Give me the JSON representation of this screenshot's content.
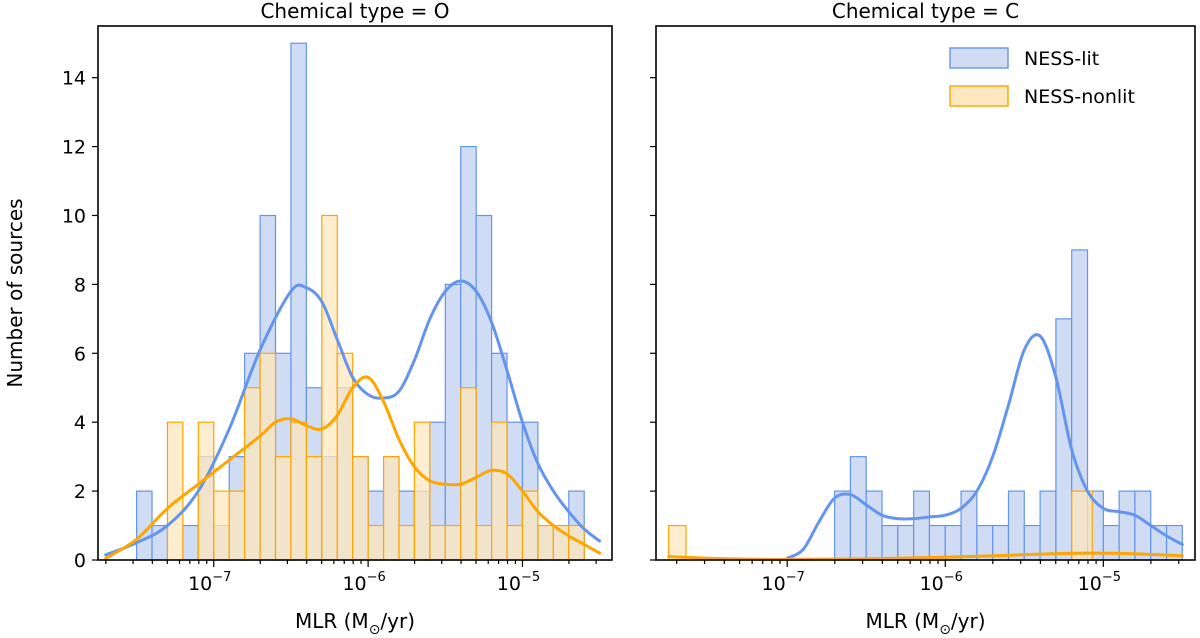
{
  "chart_data": [
    {
      "type": "histogram",
      "panel": "left",
      "title": "Chemical type = O",
      "xlabel": "MLR (M⊙/yr)",
      "xlabel_text": "MLR (M",
      "xlabel_sub": "⊙",
      "xlabel_end": "/yr)",
      "ylabel": "Number of sources",
      "xscale": "log",
      "xlim_log10": [
        -7.75,
        -4.42
      ],
      "ylim": [
        0,
        15.5
      ],
      "yticks": [
        "0",
        "2",
        "4",
        "6",
        "8",
        "10",
        "12",
        "14"
      ],
      "xticks": [
        {
          "base": "10",
          "exp": "−7",
          "log10": -7
        },
        {
          "base": "10",
          "exp": "−6",
          "log10": -6
        },
        {
          "base": "10",
          "exp": "−5",
          "log10": -5
        }
      ],
      "bin_edges_log10": [
        -7.5,
        -7.4,
        -7.3,
        -7.2,
        -7.1,
        -7.0,
        -6.9,
        -6.8,
        -6.7,
        -6.6,
        -6.5,
        -6.4,
        -6.3,
        -6.2,
        -6.1,
        -6.0,
        -5.9,
        -5.8,
        -5.7,
        -5.6,
        -5.5,
        -5.4,
        -5.3,
        -5.2,
        -5.1,
        -5.0,
        -4.9,
        -4.8,
        -4.7,
        -4.6,
        -4.5
      ],
      "series": [
        {
          "name": "NESS-lit",
          "color": "#6495ed",
          "fill": "#cfdcf4",
          "counts": [
            2,
            1,
            0,
            1,
            3,
            1,
            3,
            6,
            10,
            6,
            15,
            5,
            3,
            5,
            3,
            2,
            3,
            2,
            2,
            4,
            8,
            12,
            10,
            6,
            4,
            4,
            1,
            1,
            2,
            0
          ]
        },
        {
          "name": "NESS-nonlit",
          "color": "#ffa500",
          "fill": "#fde7be",
          "counts": [
            0,
            0,
            4,
            0,
            4,
            2,
            2,
            5,
            6,
            3,
            4,
            3,
            10,
            6,
            3,
            1,
            3,
            1,
            4,
            1,
            1,
            5,
            1,
            4,
            1,
            2,
            1,
            1,
            1,
            0
          ]
        }
      ],
      "kde": [
        {
          "name": "NESS-lit",
          "color": "#6495ed",
          "x_log10": [
            -7.7,
            -7.5,
            -7.3,
            -7.1,
            -6.9,
            -6.7,
            -6.5,
            -6.4,
            -6.3,
            -6.2,
            -6.1,
            -6.0,
            -5.9,
            -5.8,
            -5.7,
            -5.6,
            -5.5,
            -5.4,
            -5.3,
            -5.2,
            -5.1,
            -5.0,
            -4.9,
            -4.8,
            -4.7,
            -4.6,
            -4.5
          ],
          "y": [
            0.15,
            0.5,
            1.0,
            2.0,
            3.8,
            6.1,
            7.8,
            7.9,
            7.5,
            6.4,
            5.3,
            4.8,
            4.7,
            4.9,
            5.8,
            7.0,
            7.8,
            8.1,
            7.8,
            6.9,
            5.5,
            4.0,
            2.8,
            2.0,
            1.4,
            0.9,
            0.55
          ]
        },
        {
          "name": "NESS-nonlit",
          "color": "#ffa500",
          "x_log10": [
            -7.7,
            -7.5,
            -7.3,
            -7.1,
            -6.9,
            -6.7,
            -6.6,
            -6.5,
            -6.4,
            -6.3,
            -6.2,
            -6.1,
            -6.0,
            -5.9,
            -5.8,
            -5.7,
            -5.6,
            -5.5,
            -5.4,
            -5.3,
            -5.2,
            -5.1,
            -5.0,
            -4.9,
            -4.8,
            -4.7,
            -4.6,
            -4.5
          ],
          "y": [
            0.05,
            0.6,
            1.5,
            2.2,
            2.9,
            3.6,
            4.0,
            4.1,
            3.9,
            3.8,
            4.2,
            5.0,
            5.3,
            4.6,
            3.5,
            2.7,
            2.3,
            2.2,
            2.2,
            2.4,
            2.6,
            2.5,
            2.0,
            1.4,
            1.0,
            0.7,
            0.45,
            0.2
          ]
        }
      ]
    },
    {
      "type": "histogram",
      "panel": "right",
      "title": "Chemical type = C",
      "xlabel": "MLR (M⊙/yr)",
      "xlabel_text": "MLR (M",
      "xlabel_sub": "⊙",
      "xlabel_end": "/yr)",
      "ylabel": "",
      "xscale": "log",
      "xlim_log10": [
        -7.83,
        -4.42
      ],
      "ylim": [
        0,
        15.5
      ],
      "yticks": [
        "0",
        "2",
        "4",
        "6",
        "8",
        "10",
        "12",
        "14"
      ],
      "xticks": [
        {
          "base": "10",
          "exp": "−7",
          "log10": -7
        },
        {
          "base": "10",
          "exp": "−6",
          "log10": -6
        },
        {
          "base": "10",
          "exp": "−5",
          "log10": -5
        }
      ],
      "bin_edges_log10": [
        -6.7,
        -6.6,
        -6.5,
        -6.4,
        -6.3,
        -6.2,
        -6.1,
        -6.0,
        -5.9,
        -5.8,
        -5.7,
        -5.6,
        -5.5,
        -5.4,
        -5.3,
        -5.2,
        -5.1,
        -5.0,
        -4.9,
        -4.8,
        -4.7,
        -4.6,
        -4.5
      ],
      "series": [
        {
          "name": "NESS-lit",
          "color": "#6495ed",
          "fill": "#cfdcf4",
          "counts": [
            2,
            3,
            2,
            1,
            1,
            2,
            1,
            1,
            2,
            1,
            1,
            2,
            1,
            2,
            7,
            9,
            2,
            1,
            2,
            2,
            1,
            1
          ]
        },
        {
          "name": "NESS-nonlit",
          "color": "#ffa500",
          "fill": "#fde7be",
          "bars": [
            {
              "from": -7.75,
              "to": -7.64,
              "count": 1
            },
            {
              "from": -5.2,
              "to": -5.07,
              "count": 2
            }
          ]
        }
      ],
      "kde": [
        {
          "name": "NESS-lit",
          "color": "#6495ed",
          "x_log10": [
            -7.0,
            -6.9,
            -6.8,
            -6.7,
            -6.6,
            -6.5,
            -6.4,
            -6.3,
            -6.2,
            -6.1,
            -6.0,
            -5.9,
            -5.8,
            -5.7,
            -5.6,
            -5.5,
            -5.4,
            -5.3,
            -5.2,
            -5.1,
            -5.0,
            -4.9,
            -4.8,
            -4.7,
            -4.6,
            -4.5
          ],
          "y": [
            0.05,
            0.3,
            1.1,
            1.8,
            1.9,
            1.6,
            1.3,
            1.2,
            1.2,
            1.25,
            1.3,
            1.5,
            2.0,
            3.0,
            4.5,
            6.1,
            6.5,
            5.3,
            3.2,
            2.0,
            1.5,
            1.4,
            1.3,
            1.0,
            0.7,
            0.45
          ]
        },
        {
          "name": "NESS-nonlit",
          "color": "#ffa500",
          "x_log10": [
            -7.75,
            -7.5,
            -7.2,
            -6.9,
            -6.6,
            -6.3,
            -6.0,
            -5.7,
            -5.4,
            -5.1,
            -4.8,
            -4.5
          ],
          "y": [
            0.1,
            0.05,
            0.02,
            0.02,
            0.03,
            0.05,
            0.08,
            0.12,
            0.17,
            0.2,
            0.18,
            0.12
          ]
        }
      ],
      "legend": {
        "position": "top-right",
        "entries": [
          "NESS-lit",
          "NESS-nonlit"
        ]
      }
    }
  ]
}
